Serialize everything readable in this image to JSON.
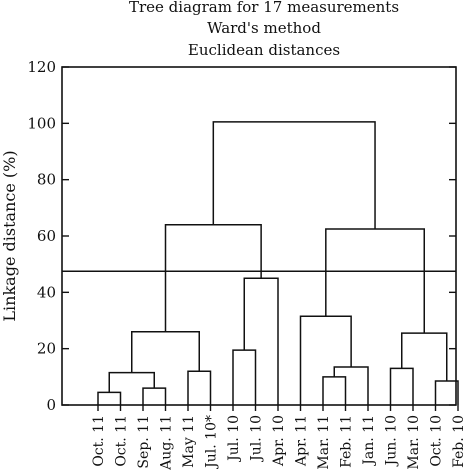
{
  "chart_data": {
    "type": "dendrogram",
    "title_lines": [
      "Tree diagram for 17 measurements",
      "Ward's method",
      "Euclidean distances"
    ],
    "ylabel": "Linkage distance (%)",
    "ylim": [
      0,
      120
    ],
    "yticks": [
      0,
      20,
      40,
      60,
      80,
      100,
      120
    ],
    "leaves": [
      "Oct. 11",
      "Oct. 11",
      "Sep. 11",
      "Aug. 11",
      "May 11",
      "Jul. 10*",
      "Jul. 10",
      "Jul. 10",
      "Apr. 10",
      "Apr. 11",
      "Mar. 11",
      "Feb. 11",
      "Jan. 11",
      "Jun. 10",
      "Mar. 10",
      "Oct. 10",
      "Feb. 10"
    ],
    "merges": [
      {
        "left": {
          "leaf": 0
        },
        "right": {
          "leaf": 1
        },
        "height": 4.5
      },
      {
        "left": {
          "leaf": 2
        },
        "right": {
          "leaf": 3
        },
        "height": 6
      },
      {
        "left": {
          "merge": 0
        },
        "right": {
          "merge": 1
        },
        "height": 11.5
      },
      {
        "left": {
          "leaf": 4
        },
        "right": {
          "leaf": 5
        },
        "height": 12
      },
      {
        "left": {
          "merge": 2
        },
        "right": {
          "merge": 3
        },
        "height": 26
      },
      {
        "left": {
          "leaf": 6
        },
        "right": {
          "leaf": 7
        },
        "height": 19.5
      },
      {
        "left": {
          "merge": 5
        },
        "right": {
          "leaf": 8
        },
        "height": 45
      },
      {
        "left": {
          "merge": 4
        },
        "right": {
          "merge": 6
        },
        "height": 64
      },
      {
        "left": {
          "leaf": 10
        },
        "right": {
          "leaf": 11
        },
        "height": 10
      },
      {
        "left": {
          "merge": 8
        },
        "right": {
          "leaf": 12
        },
        "height": 13.5
      },
      {
        "left": {
          "leaf": 9
        },
        "right": {
          "merge": 9
        },
        "height": 31.5
      },
      {
        "left": {
          "leaf": 13
        },
        "right": {
          "leaf": 14
        },
        "height": 13
      },
      {
        "left": {
          "leaf": 15
        },
        "right": {
          "leaf": 16
        },
        "height": 8.5
      },
      {
        "left": {
          "merge": 11
        },
        "right": {
          "merge": 12
        },
        "height": 25.5
      },
      {
        "left": {
          "merge": 10
        },
        "right": {
          "merge": 13
        },
        "height": 62.5
      },
      {
        "left": {
          "merge": 7
        },
        "right": {
          "merge": 14
        },
        "height": 100.5
      }
    ],
    "cut_line": 47.5,
    "grid": false,
    "legend": "none"
  }
}
